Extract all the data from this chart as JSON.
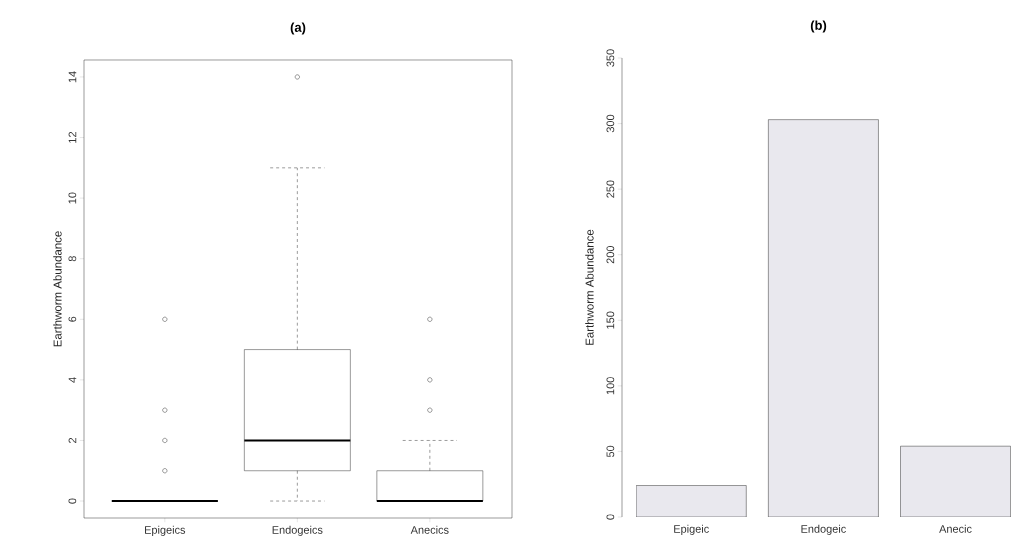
{
  "chart_data": [
    {
      "type": "box",
      "title": "(a)",
      "ylabel": "Earthworm Abundance",
      "categories": [
        "Epigeics",
        "Endogeics",
        "Anecics"
      ],
      "boxes": [
        {
          "low": 0,
          "q1": 0,
          "median": 0,
          "q3": 0,
          "high": 0,
          "outliers": [
            1,
            2,
            3,
            6
          ]
        },
        {
          "low": 0,
          "q1": 1,
          "median": 2,
          "q3": 5,
          "high": 11,
          "outliers": [
            14
          ]
        },
        {
          "low": 0,
          "q1": 0,
          "median": 0,
          "q3": 1,
          "high": 2,
          "outliers": [
            3,
            4,
            6
          ]
        }
      ],
      "color": "#000000",
      "ylim": [
        -0.56,
        14.56
      ],
      "yticks": [
        0,
        2,
        4,
        6,
        8,
        10,
        12,
        14
      ],
      "grid": false
    },
    {
      "type": "bar",
      "title": "(b)",
      "ylabel": "Earthworm Abundance",
      "categories": [
        "Epigeic",
        "Endogeic",
        "Anecic"
      ],
      "values": [
        24,
        303,
        54
      ],
      "color": "#e9e8ee",
      "ylim": [
        0,
        350
      ],
      "yticks": [
        0,
        50,
        100,
        150,
        200,
        250,
        300,
        350
      ],
      "grid": false
    }
  ]
}
